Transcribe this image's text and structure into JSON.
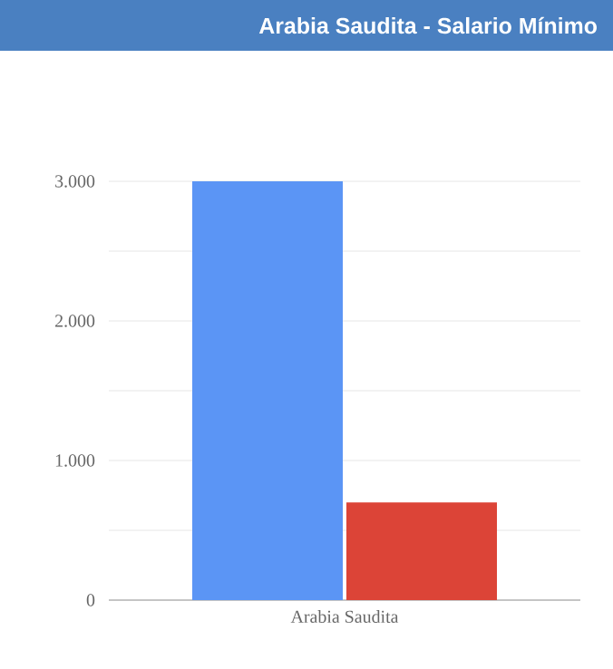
{
  "chart_data": {
    "type": "bar",
    "title": "Arabia Saudita - Salario Mínimo",
    "categories": [
      "Arabia Saudita"
    ],
    "series": [
      {
        "color": "#5b95f5",
        "values": [
          3000
        ]
      },
      {
        "color": "#dc4437",
        "values": [
          700
        ]
      }
    ],
    "ylim": [
      0,
      3000
    ],
    "yticks": [
      {
        "value": 0,
        "label": "0"
      },
      {
        "value": 500,
        "label": null
      },
      {
        "value": 1000,
        "label": "1.000"
      },
      {
        "value": 1500,
        "label": null
      },
      {
        "value": 2000,
        "label": "2.000"
      },
      {
        "value": 2500,
        "label": null
      },
      {
        "value": 3000,
        "label": "3.000"
      }
    ],
    "grid": "y"
  }
}
